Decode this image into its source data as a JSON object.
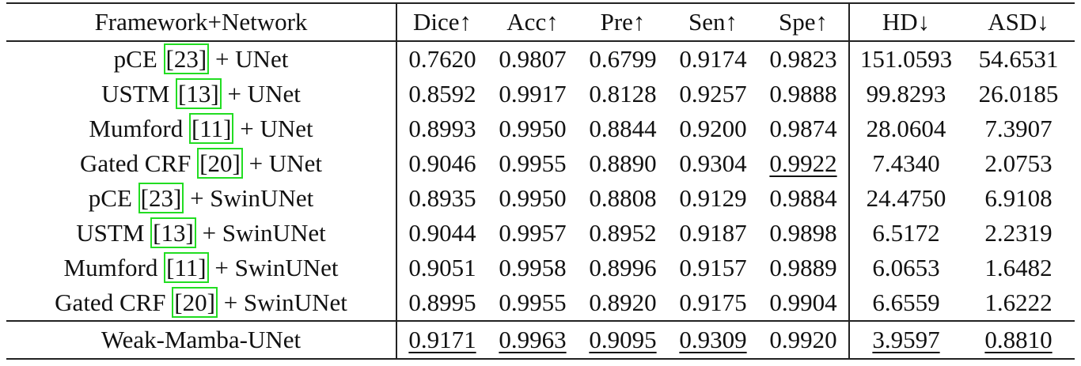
{
  "table": {
    "headers": [
      "Framework+Network",
      "Dice↑",
      "Acc↑",
      "Pre↑",
      "Sen↑",
      "Spe↑",
      "HD↓",
      "ASD↓"
    ],
    "rows": [
      {
        "name": "pCE",
        "ref": "[23]",
        "network": "+ UNet",
        "values": [
          "0.7620",
          "0.9807",
          "0.6799",
          "0.9174",
          "0.9823",
          "151.0593",
          "54.6531"
        ],
        "underlined": []
      },
      {
        "name": "USTM",
        "ref": "[13]",
        "network": "+ UNet",
        "values": [
          "0.8592",
          "0.9917",
          "0.8128",
          "0.9257",
          "0.9888",
          "99.8293",
          "26.0185"
        ],
        "underlined": []
      },
      {
        "name": "Mumford",
        "ref": "[11]",
        "network": "+ UNet",
        "values": [
          "0.8993",
          "0.9950",
          "0.8844",
          "0.9200",
          "0.9874",
          "28.0604",
          "7.3907"
        ],
        "underlined": []
      },
      {
        "name": "Gated CRF",
        "ref": "[20]",
        "network": "+ UNet",
        "values": [
          "0.9046",
          "0.9955",
          "0.8890",
          "0.9304",
          "0.9922",
          "7.4340",
          "2.0753"
        ],
        "underlined": [
          4
        ]
      },
      {
        "name": "pCE",
        "ref": "[23]",
        "network": "+ SwinUNet",
        "values": [
          "0.8935",
          "0.9950",
          "0.8808",
          "0.9129",
          "0.9884",
          "24.4750",
          "6.9108"
        ],
        "underlined": []
      },
      {
        "name": "USTM",
        "ref": "[13]",
        "network": "+ SwinUNet",
        "values": [
          "0.9044",
          "0.9957",
          "0.8952",
          "0.9187",
          "0.9898",
          "6.5172",
          "2.2319"
        ],
        "underlined": []
      },
      {
        "name": "Mumford",
        "ref": "[11]",
        "network": "+ SwinUNet",
        "values": [
          "0.9051",
          "0.9958",
          "0.8996",
          "0.9157",
          "0.9889",
          "6.0653",
          "1.6482"
        ],
        "underlined": []
      },
      {
        "name": "Gated CRF",
        "ref": "[20]",
        "network": "+ SwinUNet",
        "values": [
          "0.8995",
          "0.9955",
          "0.8920",
          "0.9175",
          "0.9904",
          "6.6559",
          "1.6222"
        ],
        "underlined": []
      },
      {
        "name": "Weak-Mamba-UNet",
        "values": [
          "0.9171",
          "0.9963",
          "0.9095",
          "0.9309",
          "0.9920",
          "3.9597",
          "0.8810"
        ],
        "underlined": [
          0,
          1,
          2,
          3,
          5,
          6
        ]
      }
    ]
  }
}
